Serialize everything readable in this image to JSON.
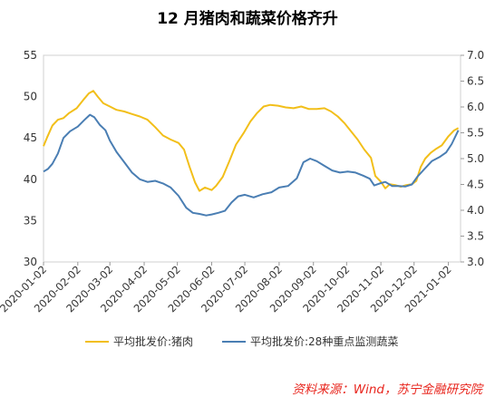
{
  "chart_data": {
    "type": "line",
    "title": "12 月猪肉和蔬菜价格齐升",
    "x_ticks": [
      "2020-01-02",
      "2020-02-02",
      "2020-03-02",
      "2020-04-02",
      "2020-05-02",
      "2020-06-02",
      "2020-07-02",
      "2020-08-02",
      "2020-09-02",
      "2020-10-02",
      "2020-11-02",
      "2020-12-02",
      "2021-01-02"
    ],
    "y_left": {
      "min": 30,
      "max": 55,
      "step": 5,
      "labels": [
        "30",
        "35",
        "40",
        "45",
        "50",
        "55"
      ]
    },
    "y_right": {
      "min": 3.0,
      "max": 7.0,
      "step": 0.5,
      "labels": [
        "3.0",
        "3.5",
        "4.0",
        "4.5",
        "5.0",
        "5.5",
        "6.0",
        "6.5",
        "7.0"
      ]
    },
    "series": [
      {
        "name": "平均批发价:猪肉",
        "axis": "left",
        "color": "#f2bf1a",
        "points": [
          [
            "2020-01-02",
            44.0
          ],
          [
            "2020-01-05",
            45.0
          ],
          [
            "2020-01-10",
            46.5
          ],
          [
            "2020-01-15",
            47.2
          ],
          [
            "2020-01-20",
            47.4
          ],
          [
            "2020-01-25",
            48.0
          ],
          [
            "2020-02-01",
            48.6
          ],
          [
            "2020-02-07",
            49.6
          ],
          [
            "2020-02-12",
            50.4
          ],
          [
            "2020-02-16",
            50.7
          ],
          [
            "2020-02-20",
            50.0
          ],
          [
            "2020-02-25",
            49.2
          ],
          [
            "2020-03-02",
            48.8
          ],
          [
            "2020-03-08",
            48.4
          ],
          [
            "2020-03-15",
            48.2
          ],
          [
            "2020-03-22",
            47.9
          ],
          [
            "2020-03-29",
            47.6
          ],
          [
            "2020-04-05",
            47.2
          ],
          [
            "2020-04-12",
            46.3
          ],
          [
            "2020-04-19",
            45.3
          ],
          [
            "2020-04-26",
            44.8
          ],
          [
            "2020-05-03",
            44.4
          ],
          [
            "2020-05-08",
            43.6
          ],
          [
            "2020-05-13",
            41.5
          ],
          [
            "2020-05-18",
            39.6
          ],
          [
            "2020-05-22",
            38.6
          ],
          [
            "2020-05-27",
            39.0
          ],
          [
            "2020-06-02",
            38.7
          ],
          [
            "2020-06-06",
            39.2
          ],
          [
            "2020-06-12",
            40.3
          ],
          [
            "2020-06-18",
            42.2
          ],
          [
            "2020-06-24",
            44.2
          ],
          [
            "2020-07-01",
            45.6
          ],
          [
            "2020-07-07",
            47.0
          ],
          [
            "2020-07-13",
            48.0
          ],
          [
            "2020-07-19",
            48.8
          ],
          [
            "2020-07-25",
            49.0
          ],
          [
            "2020-08-01",
            48.9
          ],
          [
            "2020-08-08",
            48.7
          ],
          [
            "2020-08-15",
            48.6
          ],
          [
            "2020-08-22",
            48.8
          ],
          [
            "2020-08-29",
            48.5
          ],
          [
            "2020-09-05",
            48.5
          ],
          [
            "2020-09-12",
            48.6
          ],
          [
            "2020-09-18",
            48.2
          ],
          [
            "2020-09-24",
            47.6
          ],
          [
            "2020-09-30",
            46.8
          ],
          [
            "2020-10-06",
            45.8
          ],
          [
            "2020-10-12",
            44.8
          ],
          [
            "2020-10-18",
            43.6
          ],
          [
            "2020-10-24",
            42.6
          ],
          [
            "2020-10-28",
            40.4
          ],
          [
            "2020-11-02",
            39.7
          ],
          [
            "2020-11-06",
            38.9
          ],
          [
            "2020-11-10",
            39.4
          ],
          [
            "2020-11-15",
            39.3
          ],
          [
            "2020-11-20",
            39.1
          ],
          [
            "2020-11-25",
            39.3
          ],
          [
            "2020-11-30",
            39.4
          ],
          [
            "2020-12-04",
            39.8
          ],
          [
            "2020-12-08",
            41.5
          ],
          [
            "2020-12-12",
            42.5
          ],
          [
            "2020-12-17",
            43.2
          ],
          [
            "2020-12-22",
            43.7
          ],
          [
            "2020-12-27",
            44.1
          ],
          [
            "2021-01-02",
            45.2
          ],
          [
            "2021-01-07",
            45.9
          ],
          [
            "2021-01-11",
            46.2
          ]
        ]
      },
      {
        "name": "平均批发价:28种重点监测蔬菜",
        "axis": "right",
        "color": "#4a7eb3",
        "points": [
          [
            "2020-01-02",
            4.75
          ],
          [
            "2020-01-06",
            4.8
          ],
          [
            "2020-01-10",
            4.9
          ],
          [
            "2020-01-15",
            5.1
          ],
          [
            "2020-01-20",
            5.4
          ],
          [
            "2020-01-26",
            5.53
          ],
          [
            "2020-02-02",
            5.62
          ],
          [
            "2020-02-08",
            5.75
          ],
          [
            "2020-02-13",
            5.85
          ],
          [
            "2020-02-17",
            5.8
          ],
          [
            "2020-02-22",
            5.65
          ],
          [
            "2020-02-27",
            5.55
          ],
          [
            "2020-03-02",
            5.35
          ],
          [
            "2020-03-08",
            5.13
          ],
          [
            "2020-03-15",
            4.93
          ],
          [
            "2020-03-22",
            4.73
          ],
          [
            "2020-03-29",
            4.6
          ],
          [
            "2020-04-05",
            4.55
          ],
          [
            "2020-04-12",
            4.57
          ],
          [
            "2020-04-19",
            4.52
          ],
          [
            "2020-04-26",
            4.44
          ],
          [
            "2020-05-03",
            4.28
          ],
          [
            "2020-05-10",
            4.05
          ],
          [
            "2020-05-16",
            3.95
          ],
          [
            "2020-05-22",
            3.93
          ],
          [
            "2020-05-28",
            3.9
          ],
          [
            "2020-06-02",
            3.92
          ],
          [
            "2020-06-08",
            3.95
          ],
          [
            "2020-06-14",
            3.99
          ],
          [
            "2020-06-20",
            4.15
          ],
          [
            "2020-06-26",
            4.27
          ],
          [
            "2020-07-02",
            4.3
          ],
          [
            "2020-07-10",
            4.25
          ],
          [
            "2020-07-18",
            4.31
          ],
          [
            "2020-07-26",
            4.35
          ],
          [
            "2020-08-02",
            4.44
          ],
          [
            "2020-08-10",
            4.47
          ],
          [
            "2020-08-18",
            4.62
          ],
          [
            "2020-08-24",
            4.93
          ],
          [
            "2020-08-30",
            5.0
          ],
          [
            "2020-09-05",
            4.95
          ],
          [
            "2020-09-12",
            4.86
          ],
          [
            "2020-09-19",
            4.77
          ],
          [
            "2020-09-26",
            4.73
          ],
          [
            "2020-10-03",
            4.75
          ],
          [
            "2020-10-10",
            4.73
          ],
          [
            "2020-10-17",
            4.67
          ],
          [
            "2020-10-23",
            4.61
          ],
          [
            "2020-10-27",
            4.48
          ],
          [
            "2020-11-01",
            4.52
          ],
          [
            "2020-11-06",
            4.55
          ],
          [
            "2020-11-12",
            4.47
          ],
          [
            "2020-11-18",
            4.47
          ],
          [
            "2020-11-24",
            4.46
          ],
          [
            "2020-11-30",
            4.5
          ],
          [
            "2020-12-05",
            4.65
          ],
          [
            "2020-12-11",
            4.79
          ],
          [
            "2020-12-18",
            4.95
          ],
          [
            "2020-12-25",
            5.03
          ],
          [
            "2020-12-31",
            5.12
          ],
          [
            "2021-01-05",
            5.28
          ],
          [
            "2021-01-11",
            5.55
          ]
        ]
      }
    ],
    "legend": {
      "placement": "bottom"
    },
    "grid": false
  },
  "source_note": "资料来源：Wind，苏宁金融研究院"
}
